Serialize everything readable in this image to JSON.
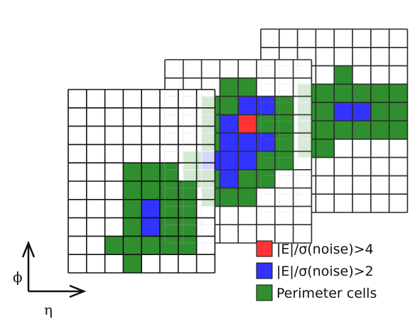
{
  "legend": {
    "items": [
      {
        "label": "|E|/σ(noise)>4",
        "color": "#ff3333"
      },
      {
        "label": "|E|/σ(noise)>2",
        "color": "#3333ff"
      },
      {
        "label": "Perimeter cells",
        "color": "#2f8f2f"
      }
    ]
  },
  "axes": {
    "vertical_label": "ϕ",
    "horizontal_label": "η"
  },
  "colors": {
    "seed": "#ff3333",
    "neighbor": "#3333ff",
    "perimeter": "#2f8f2f",
    "grid": "#111111",
    "ghost_grid": "#bbbbbb"
  },
  "layers": [
    {
      "name": "back-layer",
      "cols": 8,
      "rows": 10,
      "cells": [
        {
          "r": 2,
          "c": 4,
          "k": "perimeter"
        },
        {
          "r": 3,
          "c": 2,
          "k": "perimeter"
        },
        {
          "r": 3,
          "c": 3,
          "k": "perimeter"
        },
        {
          "r": 3,
          "c": 4,
          "k": "perimeter"
        },
        {
          "r": 3,
          "c": 5,
          "k": "perimeter"
        },
        {
          "r": 3,
          "c": 6,
          "k": "perimeter"
        },
        {
          "r": 3,
          "c": 7,
          "k": "perimeter"
        },
        {
          "r": 4,
          "c": 2,
          "k": "perimeter"
        },
        {
          "r": 4,
          "c": 3,
          "k": "perimeter"
        },
        {
          "r": 4,
          "c": 4,
          "k": "neighbor"
        },
        {
          "r": 4,
          "c": 5,
          "k": "neighbor"
        },
        {
          "r": 4,
          "c": 6,
          "k": "perimeter"
        },
        {
          "r": 4,
          "c": 7,
          "k": "perimeter"
        },
        {
          "r": 5,
          "c": 2,
          "k": "perimeter"
        },
        {
          "r": 5,
          "c": 3,
          "k": "perimeter"
        },
        {
          "r": 5,
          "c": 4,
          "k": "perimeter"
        },
        {
          "r": 5,
          "c": 5,
          "k": "perimeter"
        },
        {
          "r": 5,
          "c": 6,
          "k": "perimeter"
        },
        {
          "r": 5,
          "c": 7,
          "k": "perimeter"
        },
        {
          "r": 6,
          "c": 2,
          "k": "perimeter"
        },
        {
          "r": 6,
          "c": 3,
          "k": "perimeter"
        }
      ]
    },
    {
      "name": "middle-layer",
      "cols": 8,
      "rows": 10,
      "cells": [
        {
          "r": 1,
          "c": 3,
          "k": "perimeter"
        },
        {
          "r": 1,
          "c": 4,
          "k": "perimeter"
        },
        {
          "r": 2,
          "c": 2,
          "k": "perimeter"
        },
        {
          "r": 2,
          "c": 3,
          "k": "perimeter"
        },
        {
          "r": 2,
          "c": 4,
          "k": "neighbor"
        },
        {
          "r": 2,
          "c": 5,
          "k": "neighbor"
        },
        {
          "r": 2,
          "c": 6,
          "k": "perimeter"
        },
        {
          "r": 3,
          "c": 2,
          "k": "perimeter"
        },
        {
          "r": 3,
          "c": 3,
          "k": "neighbor"
        },
        {
          "r": 3,
          "c": 4,
          "k": "seed"
        },
        {
          "r": 3,
          "c": 5,
          "k": "perimeter"
        },
        {
          "r": 3,
          "c": 6,
          "k": "perimeter"
        },
        {
          "r": 4,
          "c": 2,
          "k": "perimeter"
        },
        {
          "r": 4,
          "c": 3,
          "k": "neighbor"
        },
        {
          "r": 4,
          "c": 4,
          "k": "neighbor"
        },
        {
          "r": 4,
          "c": 5,
          "k": "neighbor"
        },
        {
          "r": 4,
          "c": 6,
          "k": "perimeter"
        },
        {
          "r": 5,
          "c": 1,
          "k": "perimeter"
        },
        {
          "r": 5,
          "c": 2,
          "k": "neighbor"
        },
        {
          "r": 5,
          "c": 3,
          "k": "neighbor"
        },
        {
          "r": 5,
          "c": 4,
          "k": "neighbor"
        },
        {
          "r": 5,
          "c": 5,
          "k": "perimeter"
        },
        {
          "r": 5,
          "c": 6,
          "k": "perimeter"
        },
        {
          "r": 6,
          "c": 1,
          "k": "perimeter"
        },
        {
          "r": 6,
          "c": 2,
          "k": "perimeter"
        },
        {
          "r": 6,
          "c": 3,
          "k": "neighbor"
        },
        {
          "r": 6,
          "c": 4,
          "k": "perimeter"
        },
        {
          "r": 6,
          "c": 5,
          "k": "perimeter"
        },
        {
          "r": 7,
          "c": 2,
          "k": "perimeter"
        },
        {
          "r": 7,
          "c": 3,
          "k": "perimeter"
        },
        {
          "r": 7,
          "c": 4,
          "k": "perimeter"
        }
      ]
    },
    {
      "name": "front-layer",
      "cols": 8,
      "rows": 10,
      "cells": [
        {
          "r": 4,
          "c": 3,
          "k": "perimeter"
        },
        {
          "r": 4,
          "c": 4,
          "k": "perimeter"
        },
        {
          "r": 4,
          "c": 5,
          "k": "perimeter"
        },
        {
          "r": 5,
          "c": 3,
          "k": "perimeter"
        },
        {
          "r": 5,
          "c": 4,
          "k": "perimeter"
        },
        {
          "r": 5,
          "c": 5,
          "k": "perimeter"
        },
        {
          "r": 5,
          "c": 6,
          "k": "perimeter"
        },
        {
          "r": 6,
          "c": 3,
          "k": "perimeter"
        },
        {
          "r": 6,
          "c": 4,
          "k": "neighbor"
        },
        {
          "r": 6,
          "c": 5,
          "k": "perimeter"
        },
        {
          "r": 6,
          "c": 6,
          "k": "perimeter"
        },
        {
          "r": 7,
          "c": 3,
          "k": "perimeter"
        },
        {
          "r": 7,
          "c": 4,
          "k": "neighbor"
        },
        {
          "r": 7,
          "c": 5,
          "k": "perimeter"
        },
        {
          "r": 7,
          "c": 6,
          "k": "perimeter"
        },
        {
          "r": 8,
          "c": 2,
          "k": "perimeter"
        },
        {
          "r": 8,
          "c": 3,
          "k": "perimeter"
        },
        {
          "r": 8,
          "c": 4,
          "k": "perimeter"
        },
        {
          "r": 8,
          "c": 5,
          "k": "perimeter"
        },
        {
          "r": 8,
          "c": 6,
          "k": "perimeter"
        },
        {
          "r": 9,
          "c": 3,
          "k": "perimeter"
        }
      ]
    }
  ]
}
